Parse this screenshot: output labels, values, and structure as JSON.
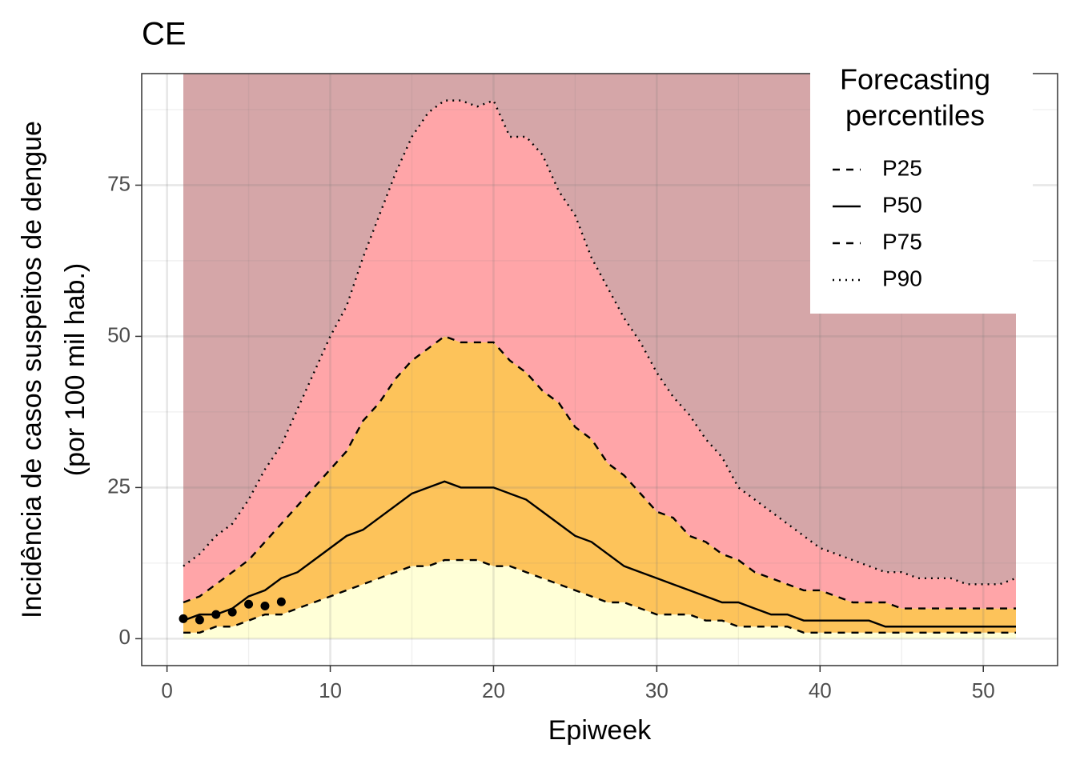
{
  "chart_data": {
    "type": "ribbon",
    "title": "CE",
    "xlabel": "Epiweek",
    "ylabel": [
      "Incidência de casos suspeitos de dengue",
      "(por 100 mil hab.)"
    ],
    "legend_title": [
      "Forecasting",
      "percentiles"
    ],
    "legend_position": "top-right",
    "grid": true,
    "xlim": [
      -1.55,
      54.55
    ],
    "ylim": [
      -4.45,
      93.45
    ],
    "xticks": [
      0,
      10,
      20,
      30,
      40,
      50
    ],
    "yticks": [
      0,
      25,
      50,
      75
    ],
    "top_fill": "#d5a6a8",
    "x": [
      1,
      2,
      3,
      4,
      5,
      6,
      7,
      8,
      9,
      10,
      11,
      12,
      13,
      14,
      15,
      16,
      17,
      18,
      19,
      20,
      21,
      22,
      23,
      24,
      25,
      26,
      27,
      28,
      29,
      30,
      31,
      32,
      33,
      34,
      35,
      36,
      37,
      38,
      39,
      40,
      41,
      42,
      43,
      44,
      45,
      46,
      47,
      48,
      49,
      50,
      51,
      52
    ],
    "series": [
      {
        "name": "P25",
        "dash": "dashed",
        "fill": "#ffffd7",
        "color": "#000000",
        "values": [
          1,
          1,
          2,
          2,
          3,
          4,
          4,
          5,
          6,
          7,
          8,
          9,
          10,
          11,
          12,
          12,
          13,
          13,
          13,
          12,
          12,
          11,
          10,
          9,
          8,
          7,
          6,
          6,
          5,
          4,
          4,
          4,
          3,
          3,
          2,
          2,
          2,
          2,
          1,
          1,
          1,
          1,
          1,
          1,
          1,
          1,
          1,
          1,
          1,
          1,
          1,
          1
        ]
      },
      {
        "name": "P50",
        "dash": "solid",
        "fill": "#fdc35a",
        "color": "#000000",
        "values": [
          3,
          4,
          4,
          5,
          7,
          8,
          10,
          11,
          13,
          15,
          17,
          18,
          20,
          22,
          24,
          25,
          26,
          25,
          25,
          25,
          24,
          23,
          21,
          19,
          17,
          16,
          14,
          12,
          11,
          10,
          9,
          8,
          7,
          6,
          6,
          5,
          4,
          4,
          3,
          3,
          3,
          3,
          3,
          2,
          2,
          2,
          2,
          2,
          2,
          2,
          2,
          2
        ]
      },
      {
        "name": "P75",
        "dash": "dashed",
        "fill": "#fdc35a",
        "color": "#000000",
        "values": [
          6,
          7,
          9,
          11,
          13,
          16,
          19,
          22,
          25,
          28,
          31,
          36,
          39,
          43,
          46,
          48,
          50,
          49,
          49,
          49,
          46,
          44,
          41,
          39,
          35,
          33,
          29,
          27,
          24,
          21,
          20,
          17,
          16,
          14,
          13,
          11,
          10,
          9,
          8,
          8,
          7,
          6,
          6,
          6,
          5,
          5,
          5,
          5,
          5,
          5,
          5,
          5
        ]
      },
      {
        "name": "P90",
        "dash": "dotted",
        "fill": "#ffa5a8",
        "color": "#000000",
        "values": [
          12,
          14,
          17,
          19,
          23,
          28,
          32,
          38,
          44,
          50,
          55,
          63,
          70,
          77,
          83,
          87,
          89,
          89,
          88,
          89,
          83,
          83,
          80,
          74,
          70,
          63,
          58,
          53,
          49,
          44,
          40,
          37,
          33,
          30,
          25,
          23,
          21,
          19,
          17,
          15,
          14,
          13,
          12,
          11,
          11,
          10,
          10,
          10,
          9,
          9,
          9,
          10
        ]
      }
    ],
    "observed": {
      "color": "#000000",
      "x": [
        1,
        2,
        3,
        4,
        5,
        6,
        7
      ],
      "values": [
        3.3,
        3.1,
        4.0,
        4.4,
        5.7,
        5.4,
        6.1
      ]
    }
  }
}
